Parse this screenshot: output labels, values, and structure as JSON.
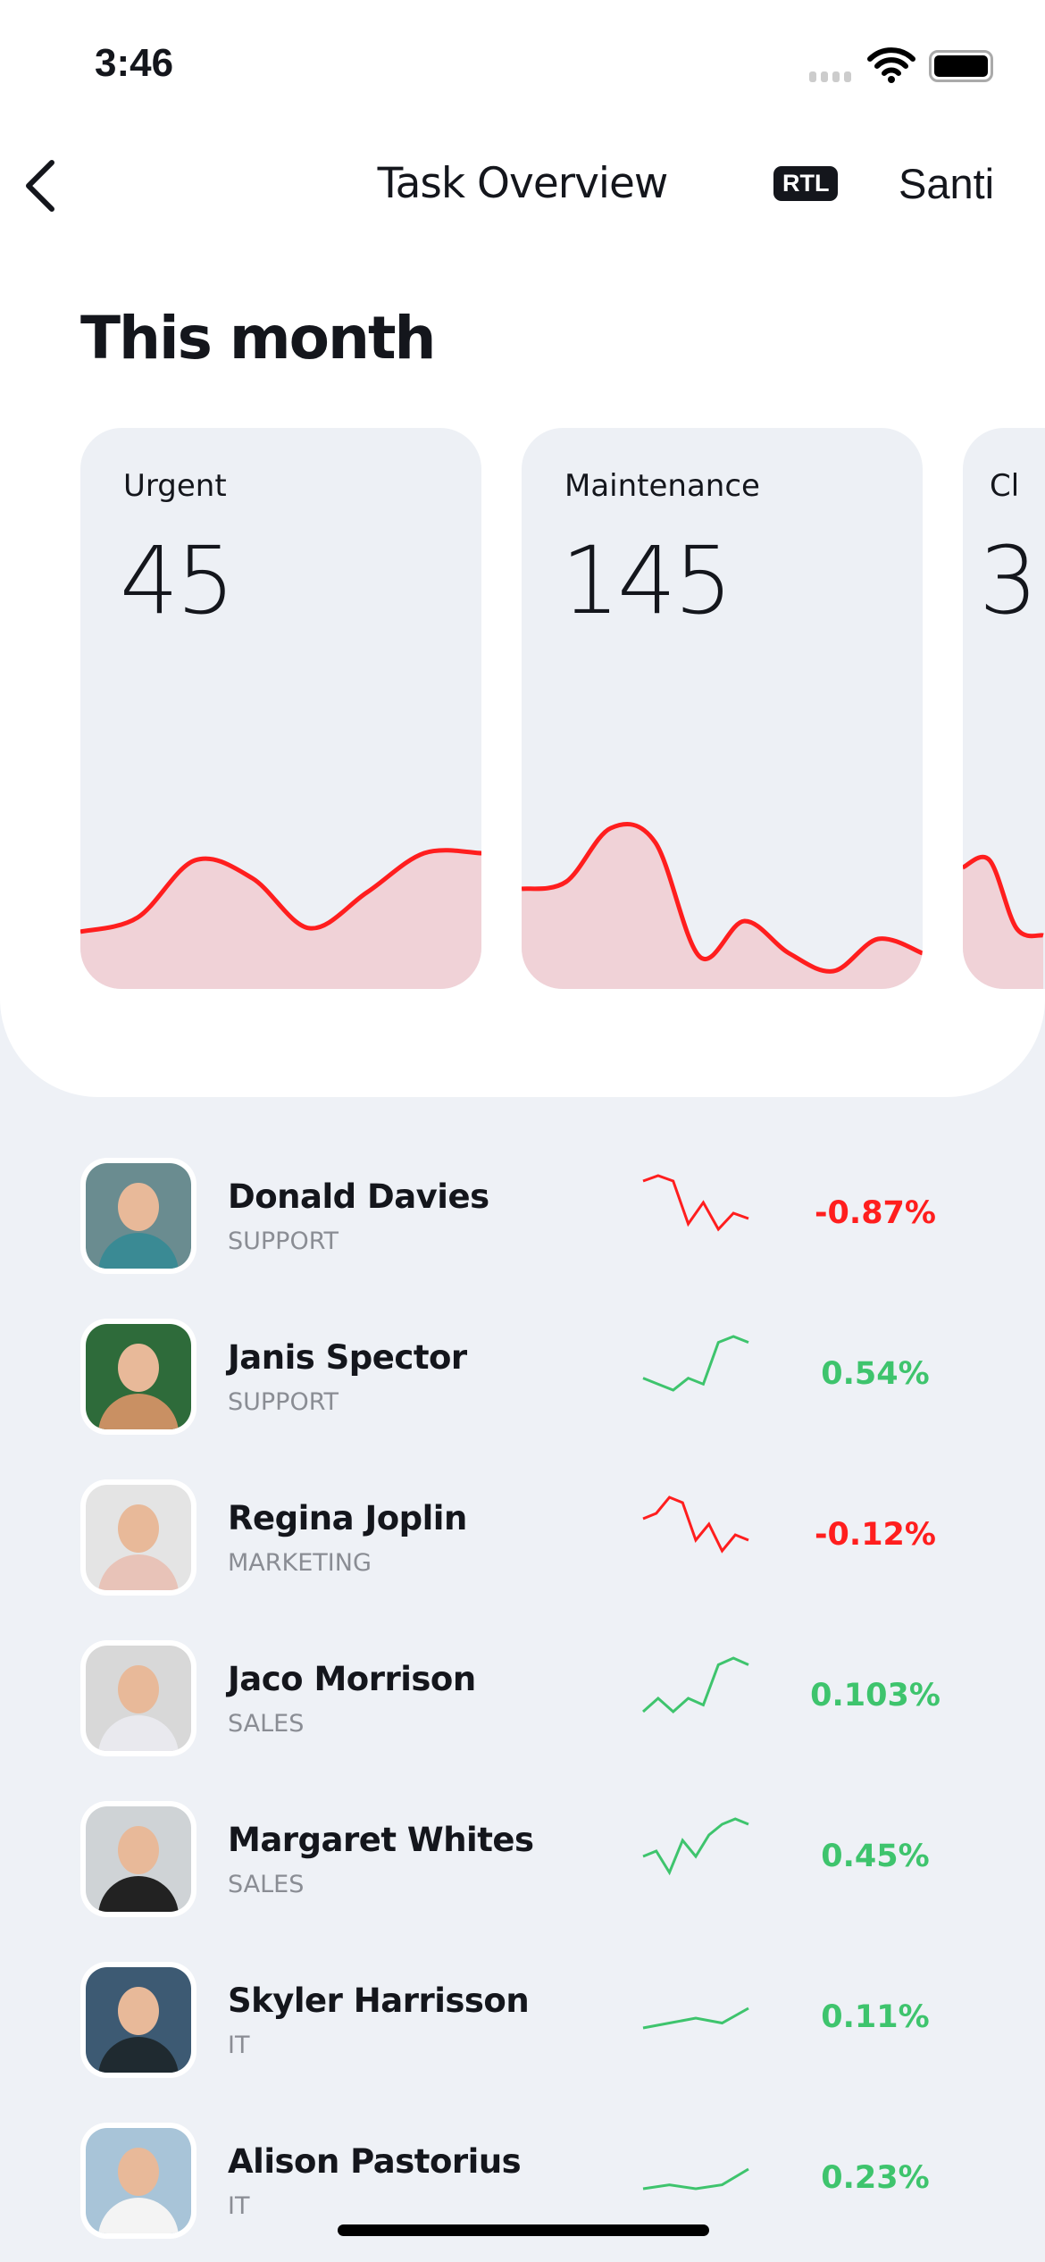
{
  "status_bar": {
    "time": "3:46",
    "icons": [
      "signal-icon",
      "wifi-icon",
      "battery-icon"
    ]
  },
  "nav": {
    "back_icon": "chevron-left-icon",
    "title": "Task Overview",
    "rtl_badge": "RTL",
    "user": "Santi"
  },
  "section_title": "This month",
  "colors": {
    "negative": "#ff1e1e",
    "positive": "#3ec46d",
    "area_fill": "#f0d2d7",
    "card_bg": "#edf0f5"
  },
  "cards": [
    {
      "label": "Urgent",
      "value": "45",
      "trend": [
        22,
        30,
        62,
        52,
        24,
        44,
        66,
        66
      ]
    },
    {
      "label": "Maintenance",
      "value": "145",
      "trend": [
        46,
        50,
        80,
        72,
        8,
        28,
        10,
        0,
        18,
        10
      ]
    },
    {
      "label": "Cl",
      "value": "3",
      "trend": [
        58,
        62,
        24,
        20
      ]
    }
  ],
  "people": [
    {
      "name": "Donald Davies",
      "department": "SUPPORT",
      "change": "-0.87%",
      "trend": [
        9,
        10,
        9,
        1,
        5,
        0,
        3,
        2
      ],
      "positive": false,
      "colors": [
        "#6a8c90",
        "#3a8a94"
      ]
    },
    {
      "name": "Janis Spector",
      "department": "SUPPORT",
      "change": "0.54%",
      "trend": [
        2,
        1,
        0,
        2,
        1,
        8,
        9,
        8
      ],
      "positive": true,
      "colors": [
        "#2e6b3a",
        "#c99063"
      ]
    },
    {
      "name": "Regina Joplin",
      "department": "MARKETING",
      "change": "-0.12%",
      "trend": [
        6,
        7,
        10,
        9,
        2,
        5,
        0,
        3,
        2
      ],
      "positive": false,
      "colors": [
        "#e4e4e4",
        "#e8c3b8"
      ]
    },
    {
      "name": "Jaco Morrison",
      "department": "SALES",
      "change": "0.103%",
      "trend": [
        1,
        3,
        1,
        3,
        2,
        8,
        9,
        8
      ],
      "positive": true,
      "colors": [
        "#d8d8d8",
        "#e9e9ee"
      ]
    },
    {
      "name": "Margaret Whites",
      "department": "SALES",
      "change": "0.45%",
      "trend": [
        3,
        4,
        0,
        6,
        3,
        7,
        9,
        10,
        9
      ],
      "positive": true,
      "colors": [
        "#cfd3d6",
        "#222"
      ]
    },
    {
      "name": "Skyler Harrisson",
      "department": "IT",
      "change": "0.11%",
      "trend": [
        1,
        2,
        3,
        2,
        5
      ],
      "positive": true,
      "colors": [
        "#3d5a73",
        "#1f2a30"
      ]
    },
    {
      "name": "Alison Pastorius",
      "department": "IT",
      "change": "0.23%",
      "trend": [
        1,
        2,
        1,
        2,
        6
      ],
      "positive": true,
      "colors": [
        "#a8c4d8",
        "#f4f4f4"
      ]
    }
  ]
}
